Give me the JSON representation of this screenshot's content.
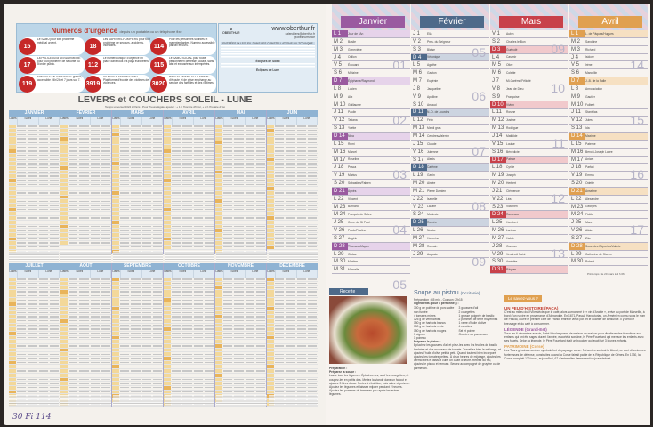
{
  "emergency": {
    "title": "Numéros d'urgence",
    "subtitle": "depuis un portable ou un téléphone fixe",
    "items": [
      {
        "num": "15",
        "text": "Le SAMU pour tout problème médical urgent."
      },
      {
        "num": "18",
        "text": "Les SAPEURS-POMPIERS pour tout problème de secours, accidents, incendies."
      },
      {
        "num": "114",
        "text": "Pour les personnes sourdes et malentendantes. Numéro accessible par fax et SMS."
      },
      {
        "num": "17",
        "text": "La POLICE ou la GENDARMERIE pour tout problème de sécurité ou d'ordre public."
      },
      {
        "num": "112",
        "text": "Le numéro unique d'urgence en place dans tous les pays européens."
      },
      {
        "num": "115",
        "text": "Le SAMU SOCIAL pour toute personne en détresse sociale, sans abri et exposée aux intempéries."
      },
      {
        "num": "119",
        "text": "ENFANTS EN DANGER N° gratuit, accessible 24h/24 et 7 jours sur 7."
      },
      {
        "num": "3919",
        "text": "VIOLENCE FEMMES INFO Plateforme d'écoute des victimes de violences."
      },
      {
        "num": "3020",
        "text": "HARCÈLEMENT SCOLAIRE N° d'écoute et de prise en charge au service des familles et des victimes."
      }
    ]
  },
  "brand": {
    "name": "OBERTHUR",
    "url": "www.oberthur.fr",
    "email": "calendriers@oberthur.fr",
    "social": "@oberthurfrance",
    "seasons": "ENTRÉES DU SOLEIL DANS LES CONSTELLATIONS DU ZODIAQUE",
    "eclipse_sun": "Éclipses de Soleil",
    "eclipse_moon": "Éclipses de Lune"
  },
  "sun_table": {
    "title": "LEVERS et COUCHERS SOLEIL - LUNE",
    "subtitle": "Temps universel 2024 à Paris - Pour l'heure légale, ajouter : + 1 h l'horaire d'hiver, + 2 h l'horaire d'été",
    "months": [
      "JANVIER",
      "FÉVRIER",
      "MARS",
      "AVRIL",
      "MAI",
      "JUIN",
      "JUILLET",
      "AOÛT",
      "SEPTEMBRE",
      "OCTOBRE",
      "NOVEMBRE",
      "DÉCEMBRE"
    ],
    "col_dates": "Dates",
    "col_sun": "Soleil",
    "col_moon": "Lune",
    "col_l": "L",
    "col_c": "C"
  },
  "handwriting": "30 Fi 114",
  "calendar": {
    "months": [
      {
        "name": "Janvier",
        "color": "#9a5aa0",
        "light": "#e6d3ea",
        "weeks": [
          "01",
          "02",
          "03",
          "04",
          "05"
        ],
        "days": [
          [
            "L",
            "Jour de l'An"
          ],
          [
            "M",
            "Basile"
          ],
          [
            "M",
            "Geneviève"
          ],
          [
            "J",
            "Odilon"
          ],
          [
            "V",
            "Édouard"
          ],
          [
            "S",
            "Mélaine"
          ],
          [
            "D",
            "Épiphanie/Raymond"
          ],
          [
            "L",
            "Lucien"
          ],
          [
            "M",
            "Alix"
          ],
          [
            "M",
            "Guillaume"
          ],
          [
            "J",
            "Paulin"
          ],
          [
            "V",
            "Tatiana"
          ],
          [
            "S",
            "Yvette"
          ],
          [
            "D",
            "Nina"
          ],
          [
            "L",
            "Rémi"
          ],
          [
            "M",
            "Marcel"
          ],
          [
            "M",
            "Roseline"
          ],
          [
            "J",
            "Prisca"
          ],
          [
            "V",
            "Marius"
          ],
          [
            "S",
            "Sébastien/Fabien"
          ],
          [
            "D",
            "Agnès"
          ],
          [
            "L",
            "Vincent"
          ],
          [
            "M",
            "Barnard"
          ],
          [
            "M",
            "François de Sales"
          ],
          [
            "J",
            "Conv. de St Paul"
          ],
          [
            "V",
            "Paule/Pauline"
          ],
          [
            "S",
            "Angèle"
          ],
          [
            "D",
            "Thomas d'Aquin"
          ],
          [
            "L",
            "Gildas"
          ],
          [
            "M",
            "Martine"
          ],
          [
            "M",
            "Marcelle"
          ]
        ]
      },
      {
        "name": "Février",
        "color": "#4e6a8a",
        "light": "#ccd4e0",
        "weeks": [
          "05",
          "06",
          "07",
          "08",
          "09"
        ],
        "days": [
          [
            "J",
            "Ella"
          ],
          [
            "V",
            "Prés. du Seigneur"
          ],
          [
            "S",
            "Blaise"
          ],
          [
            "D",
            "Véronique"
          ],
          [
            "L",
            "Agathe"
          ],
          [
            "M",
            "Gaston"
          ],
          [
            "M",
            "Eugénie"
          ],
          [
            "J",
            "Jacqueline"
          ],
          [
            "V",
            "Apolline"
          ],
          [
            "S",
            "Arnaud"
          ],
          [
            "D",
            "N.-D. de Lourdes"
          ],
          [
            "L",
            "Félix"
          ],
          [
            "M",
            "Mardi gras"
          ],
          [
            "M",
            "Cendres/Valentin"
          ],
          [
            "J",
            "Claude"
          ],
          [
            "V",
            "Julienne"
          ],
          [
            "S",
            "Alexis"
          ],
          [
            "D",
            "Carême"
          ],
          [
            "L",
            "Gabin"
          ],
          [
            "M",
            "Aimée"
          ],
          [
            "M",
            "Pierre Damien"
          ],
          [
            "J",
            "Isabelle"
          ],
          [
            "V",
            "Lazare"
          ],
          [
            "S",
            "Modeste"
          ],
          [
            "D",
            "Roméo"
          ],
          [
            "L",
            "Nestor"
          ],
          [
            "M",
            "Honorine"
          ],
          [
            "M",
            "Romain"
          ],
          [
            "J",
            "Auguste"
          ]
        ]
      },
      {
        "name": "Mars",
        "color": "#c8414a",
        "light": "#f1c9cc",
        "weeks": [
          "09",
          "10",
          "11",
          "12",
          "13"
        ],
        "days": [
          [
            "V",
            "Aubin"
          ],
          [
            "S",
            "Charles le Bon"
          ],
          [
            "D",
            "Guénolé"
          ],
          [
            "L",
            "Casimir"
          ],
          [
            "M",
            "Olive"
          ],
          [
            "M",
            "Colette"
          ],
          [
            "J",
            "Mi-Carême/Félicité"
          ],
          [
            "V",
            "Jean de Dieu"
          ],
          [
            "S",
            "Françoise"
          ],
          [
            "D",
            "Vivien"
          ],
          [
            "L",
            "Rosine"
          ],
          [
            "M",
            "Justine"
          ],
          [
            "M",
            "Rodrigue"
          ],
          [
            "J",
            "Mathilde"
          ],
          [
            "V",
            "Louise"
          ],
          [
            "S",
            "Bénédicte"
          ],
          [
            "D",
            "Patrice"
          ],
          [
            "L",
            "Cyrille"
          ],
          [
            "M",
            "Joseph"
          ],
          [
            "M",
            "Herbert"
          ],
          [
            "J",
            "Clémence"
          ],
          [
            "V",
            "Léa"
          ],
          [
            "S",
            "Victorien"
          ],
          [
            "D",
            "Rameaux"
          ],
          [
            "L",
            "Humbert"
          ],
          [
            "M",
            "Larissa"
          ],
          [
            "M",
            "Habib"
          ],
          [
            "J",
            "Gontran"
          ],
          [
            "V",
            "Vendredi Saint"
          ],
          [
            "S",
            "Amédée"
          ],
          [
            "D",
            "Pâques"
          ]
        ]
      },
      {
        "name": "Avril",
        "color": "#e0a050",
        "light": "#f6e0c2",
        "weeks": [
          "14",
          "15",
          "16",
          "17"
        ],
        "days": [
          [
            "L",
            "L. de Pâques/Hugues"
          ],
          [
            "M",
            "Sandrine"
          ],
          [
            "M",
            "Richard"
          ],
          [
            "J",
            "Isidore"
          ],
          [
            "V",
            "Irène"
          ],
          [
            "S",
            "Marcellin"
          ],
          [
            "D",
            "J.-B. de la Salle"
          ],
          [
            "L",
            "Annonciation"
          ],
          [
            "M",
            "Gautier"
          ],
          [
            "M",
            "Fulbert"
          ],
          [
            "J",
            "Stanislas"
          ],
          [
            "V",
            "Jules"
          ],
          [
            "S",
            "Ida"
          ],
          [
            "D",
            "Maxime"
          ],
          [
            "L",
            "Paterne"
          ],
          [
            "M",
            "Benoît-Joseph Labre"
          ],
          [
            "M",
            "Anicet"
          ],
          [
            "J",
            "Parfait"
          ],
          [
            "V",
            "Emma"
          ],
          [
            "S",
            "Odette"
          ],
          [
            "D",
            "Anselme"
          ],
          [
            "L",
            "Alexandre"
          ],
          [
            "M",
            "Georges"
          ],
          [
            "M",
            "Fidèle"
          ],
          [
            "J",
            "Marc"
          ],
          [
            "V",
            "Alida"
          ],
          [
            "S",
            "Zita"
          ],
          [
            "D",
            "Souv. des Déportés/Valérie"
          ],
          [
            "L",
            "Catherine de Sienne"
          ],
          [
            "M",
            "Robert"
          ]
        ],
        "note": "Printemps : le 20 mars à 3 h 06"
      }
    ]
  },
  "recipe": {
    "tag": "Recette",
    "title": "Soupe au pistou",
    "region": "(Occitanie)",
    "meta": "Préparation : 45 min - Cuisson : 2h15",
    "ingredients_label": "Ingrédients (pour 6 personnes) :",
    "ingredients": [
      "300 g de poitrine de porc salée non fumée",
      "4 tomates mûres",
      "125 g de vermicelles",
      "150 g de haricots blancs",
      "150 g de haricots verts",
      "150 g de haricots rouges",
      "1 oignon",
      "1 poireau",
      "3 gousses d'ail",
      "2 courgettes",
      "1 grosse poignée de basilic",
      "2 pommes de terre moyennes",
      "1 verre d'huile d'olive",
      "4 carottes",
      "Sel et poivre",
      "Gruyère ou parmesan"
    ],
    "prep_label": "Préparation :",
    "soup_label": "Préparez la soupe :",
    "soup_text": "Lavez tous les légumes. Épluchez-les, sauf les courgettes, et coupez-les en petits dés. Mettez la viande dans un faitout et ajoutez 3 litres d'eau. Portez à ébullition, puis salez et poivrez. Ajoutez les légumes et laissez mijoter pendant 2 heures. Ajoutez les pommes de terre ses peu après les autres légumes.",
    "pistou_label": "Préparez le pistou :",
    "pistou_text": "Épluchez les gousses d'ail et pilez-les avec les feuilles de basilic hachées et des morceaux de tomate. Travaillez bien le mélange, et ajoutez l'huile d'olive petit à petit. Quand tout est bien incorporé, ajoutez les tomates pelées. À deux heures de mijotage, ajoutez les vermicelles et laissez cuire un quart d'heure. Retirez du feu, ajoutez le pistou et remuez. Servez accompagné de gruyère ou de parmesan."
  },
  "did_you_know": {
    "tag": "Le saviez-vous ?",
    "sections": [
      {
        "title": "UN PEU D'HISTOIRE (PACA)",
        "text": "C'est au milieu du XVIIe siècle que le café, alors surnommé le « vin d'Arabie », arrive au port de Marseille, à bord d'un navire en provenance d'Alexandrie. En 1671, Pascal Harouturian, un Arménien connu sous le nom de Pascal, ouvre le premier café de France entre le vieux port et le quartier de Belsunce. Il y vend le breuvage et du café à consommer."
      },
      {
        "title": "LÉGENDE (Grand-Est)",
        "text": "Tous les 6 décembre au soir, Saint-Nicolas passe de maison en maison pour distribuer des friandises aux enfants qui ont été sages durant l'année, escorté à son âne, le Père Fouettard qui menace les enfants avec ses fouets. Selon la légende, le Père Fouettard était un boucher qui avait tué 3 jeunes enfants."
      },
      {
        "title": "PATRIMOINE (Corse)",
        "text": "Les Tours génoises sont un symbole fort du paysage corse. Présentes sur tout le littoral, ce sont d'anciennes forteresses de défense, construites quand la Corse faisait partie de la République de Gênes. En 1730, la Corse comptait 120 tours, aujourd'hui, 67 d'entre-elles demeurent toujours debout."
      }
    ]
  }
}
